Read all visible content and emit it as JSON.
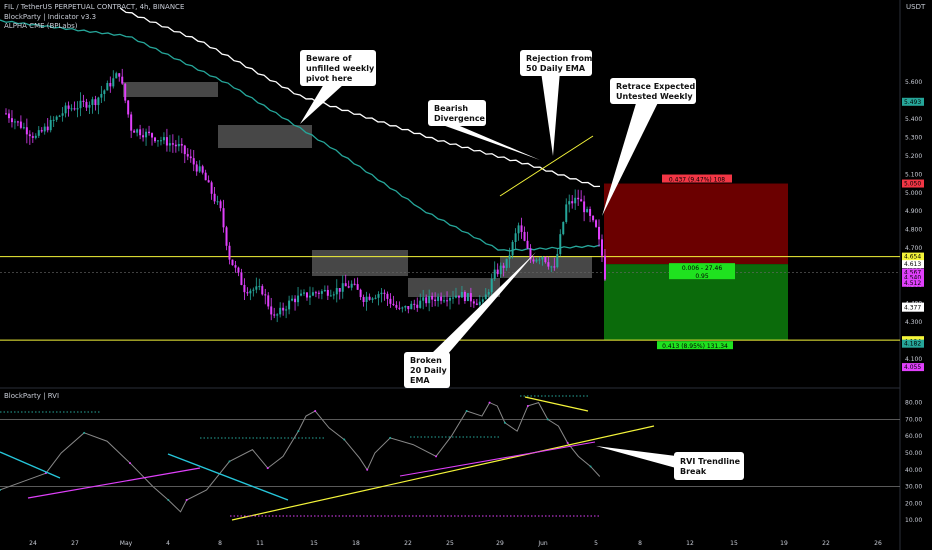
{
  "header": {
    "symbol": "FIL / TetherUS PERPETUAL CONTRACT, 4h, BINANCE",
    "indicator1": "BlockParty | Indicator v3.3",
    "indicator2": "ALPHA CME (BPLabs)",
    "currency": "USDT",
    "rvi_title": "BlockParty | RVI"
  },
  "chart_data": [
    {
      "type": "candlestick",
      "pane": "price",
      "currency": "USDT",
      "y_ticks": [
        5.6,
        5.5,
        5.4,
        5.3,
        5.2,
        5.1,
        5.0,
        4.9,
        4.8,
        4.7,
        4.6,
        4.5,
        4.4,
        4.3,
        4.2,
        4.1
      ],
      "y_tick_labels": [
        "5.600",
        "5.500",
        "5.400",
        "5.300",
        "5.200",
        "5.100",
        "5.000",
        "4.900",
        "4.800",
        "4.700",
        "4.600",
        "4.500",
        "4.400",
        "4.300",
        "4.200",
        "4.100"
      ],
      "ylim": [
        4.05,
        5.7
      ],
      "x_tick_labels": [
        "24",
        "27",
        "May",
        "4",
        "8",
        "11",
        "15",
        "18",
        "22",
        "25",
        "29",
        "Jun",
        "5",
        "8",
        "12",
        "15",
        "19",
        "22",
        "26"
      ],
      "price_tags": [
        {
          "label": "5.493",
          "value": 5.493,
          "color": "#26a69a"
        },
        {
          "label": "5.050",
          "value": 5.05,
          "color": "#f23645"
        },
        {
          "label": "4.654",
          "value": 4.654,
          "color": "#f5f53a"
        },
        {
          "label": "4.613",
          "value": 4.613,
          "color": "#ffffff"
        },
        {
          "label": "4.567",
          "value": 4.567,
          "color": "#e040fb"
        },
        {
          "label": "4.540",
          "value": 4.54,
          "color": "#e040fb"
        },
        {
          "label": "4.512",
          "value": 4.512,
          "color": "#e040fb"
        },
        {
          "label": "4.383",
          "value": 4.383,
          "color": "#ffffff"
        },
        {
          "label": "4.377",
          "value": 4.377,
          "color": "#ffffff"
        },
        {
          "label": "4.201",
          "value": 4.201,
          "color": "#f5f53a"
        },
        {
          "label": "4.194",
          "value": 4.194,
          "color": "#f5f53a"
        },
        {
          "label": "4.182",
          "value": 4.182,
          "color": "#26a69a"
        },
        {
          "label": "4.055",
          "value": 4.055,
          "color": "#e040fb"
        }
      ],
      "position": {
        "entry": 4.613,
        "stop": 5.05,
        "target": 4.201,
        "stop_label": "0.437 (9.47%) 108",
        "target_label": "0.413 (8.95%) 131.34",
        "ratio_label_1": "0.006 - 27.46",
        "ratio_label_2": "0.95"
      },
      "horizontal_levels": [
        4.654,
        4.201
      ],
      "annotations": [
        "Beware of unfilled weekly pivot here",
        "Rejection from 50 Daily EMA",
        "Bearish Divergence",
        "Retrace Expected Untested Weekly",
        "Broken 20 Daily EMA"
      ]
    },
    {
      "type": "line",
      "pane": "rvi",
      "title": "BlockParty | RVI",
      "y_ticks": [
        80,
        70,
        60,
        50,
        40,
        30,
        20,
        10
      ],
      "y_tick_labels": [
        "80.00",
        "70.00",
        "60.00",
        "50.00",
        "40.00",
        "30.00",
        "20.00",
        "10.00"
      ],
      "ylim": [
        5,
        85
      ],
      "levels": [
        70,
        30
      ],
      "annotations": [
        "RVI Trendline Break"
      ]
    }
  ],
  "colors": {
    "bull": "#26a69a",
    "bear": "#e040fb",
    "ema20": "#26a69a",
    "ema50": "#ffffff",
    "level": "#f5f53a",
    "stop_zone": "#6b0000",
    "target_zone": "#0b6b0b"
  }
}
